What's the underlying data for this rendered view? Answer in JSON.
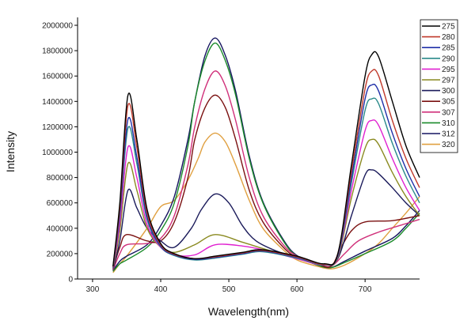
{
  "chart_data": {
    "type": "line",
    "title": "",
    "xlabel": "Wavelength(nm)",
    "ylabel": "Intensity",
    "xlim": [
      278,
      780
    ],
    "ylim": [
      0,
      2000000
    ],
    "xticks": [
      300,
      400,
      500,
      600,
      700
    ],
    "yticks": [
      0,
      200000,
      400000,
      600000,
      800000,
      1000000,
      1200000,
      1400000,
      1600000,
      1800000,
      2000000
    ],
    "legend_position": "right",
    "series": [
      {
        "name": "275",
        "color": "#000000",
        "points": [
          [
            330,
            100000
          ],
          [
            340,
            600000
          ],
          [
            352,
            1450000
          ],
          [
            365,
            1100000
          ],
          [
            380,
            550000
          ],
          [
            400,
            280000
          ],
          [
            420,
            200000
          ],
          [
            450,
            160000
          ],
          [
            480,
            180000
          ],
          [
            520,
            210000
          ],
          [
            550,
            230000
          ],
          [
            600,
            180000
          ],
          [
            640,
            120000
          ],
          [
            660,
            200000
          ],
          [
            680,
            900000
          ],
          [
            700,
            1600000
          ],
          [
            710,
            1770000
          ],
          [
            720,
            1750000
          ],
          [
            740,
            1400000
          ],
          [
            760,
            1050000
          ],
          [
            780,
            800000
          ]
        ]
      },
      {
        "name": "280",
        "color": "#c0392b",
        "points": [
          [
            330,
            95000
          ],
          [
            340,
            560000
          ],
          [
            352,
            1370000
          ],
          [
            365,
            1040000
          ],
          [
            380,
            520000
          ],
          [
            400,
            270000
          ],
          [
            420,
            195000
          ],
          [
            450,
            160000
          ],
          [
            480,
            175000
          ],
          [
            520,
            205000
          ],
          [
            550,
            225000
          ],
          [
            600,
            175000
          ],
          [
            640,
            115000
          ],
          [
            660,
            200000
          ],
          [
            680,
            850000
          ],
          [
            700,
            1500000
          ],
          [
            710,
            1640000
          ],
          [
            720,
            1600000
          ],
          [
            740,
            1250000
          ],
          [
            760,
            950000
          ],
          [
            780,
            720000
          ]
        ]
      },
      {
        "name": "285",
        "color": "#1f2fa8",
        "points": [
          [
            330,
            90000
          ],
          [
            340,
            520000
          ],
          [
            352,
            1260000
          ],
          [
            365,
            960000
          ],
          [
            380,
            490000
          ],
          [
            400,
            260000
          ],
          [
            420,
            190000
          ],
          [
            450,
            155000
          ],
          [
            480,
            170000
          ],
          [
            520,
            200000
          ],
          [
            550,
            220000
          ],
          [
            600,
            170000
          ],
          [
            640,
            115000
          ],
          [
            660,
            190000
          ],
          [
            680,
            800000
          ],
          [
            700,
            1420000
          ],
          [
            710,
            1530000
          ],
          [
            720,
            1480000
          ],
          [
            740,
            1150000
          ],
          [
            760,
            870000
          ],
          [
            780,
            650000
          ]
        ]
      },
      {
        "name": "290",
        "color": "#2a8a8a",
        "points": [
          [
            330,
            88000
          ],
          [
            340,
            500000
          ],
          [
            352,
            1190000
          ],
          [
            365,
            910000
          ],
          [
            380,
            470000
          ],
          [
            400,
            255000
          ],
          [
            420,
            185000
          ],
          [
            450,
            150000
          ],
          [
            480,
            165000
          ],
          [
            520,
            195000
          ],
          [
            550,
            215000
          ],
          [
            600,
            165000
          ],
          [
            640,
            112000
          ],
          [
            660,
            185000
          ],
          [
            680,
            760000
          ],
          [
            700,
            1330000
          ],
          [
            710,
            1420000
          ],
          [
            720,
            1380000
          ],
          [
            740,
            1070000
          ],
          [
            760,
            810000
          ],
          [
            780,
            600000
          ]
        ]
      },
      {
        "name": "295",
        "color": "#e020d0",
        "points": [
          [
            330,
            85000
          ],
          [
            340,
            440000
          ],
          [
            352,
            1040000
          ],
          [
            365,
            800000
          ],
          [
            380,
            430000
          ],
          [
            400,
            250000
          ],
          [
            420,
            190000
          ],
          [
            450,
            190000
          ],
          [
            480,
            270000
          ],
          [
            520,
            260000
          ],
          [
            550,
            230000
          ],
          [
            600,
            160000
          ],
          [
            640,
            110000
          ],
          [
            660,
            180000
          ],
          [
            680,
            700000
          ],
          [
            700,
            1170000
          ],
          [
            710,
            1250000
          ],
          [
            720,
            1210000
          ],
          [
            740,
            950000
          ],
          [
            760,
            720000
          ],
          [
            780,
            540000
          ]
        ]
      },
      {
        "name": "297",
        "color": "#8a8a20",
        "points": [
          [
            330,
            80000
          ],
          [
            340,
            380000
          ],
          [
            352,
            910000
          ],
          [
            365,
            700000
          ],
          [
            380,
            400000
          ],
          [
            400,
            250000
          ],
          [
            420,
            210000
          ],
          [
            450,
            270000
          ],
          [
            480,
            350000
          ],
          [
            520,
            290000
          ],
          [
            550,
            240000
          ],
          [
            600,
            160000
          ],
          [
            640,
            110000
          ],
          [
            660,
            170000
          ],
          [
            680,
            640000
          ],
          [
            700,
            1030000
          ],
          [
            710,
            1100000
          ],
          [
            720,
            1060000
          ],
          [
            740,
            840000
          ],
          [
            760,
            650000
          ],
          [
            780,
            500000
          ]
        ]
      },
      {
        "name": "300",
        "color": "#1a1a5a",
        "points": [
          [
            330,
            75000
          ],
          [
            340,
            300000
          ],
          [
            352,
            700000
          ],
          [
            365,
            560000
          ],
          [
            380,
            400000
          ],
          [
            400,
            300000
          ],
          [
            420,
            250000
          ],
          [
            445,
            400000
          ],
          [
            460,
            550000
          ],
          [
            480,
            670000
          ],
          [
            500,
            600000
          ],
          [
            520,
            420000
          ],
          [
            540,
            300000
          ],
          [
            570,
            220000
          ],
          [
            600,
            170000
          ],
          [
            640,
            110000
          ],
          [
            660,
            160000
          ],
          [
            680,
            500000
          ],
          [
            700,
            820000
          ],
          [
            710,
            860000
          ],
          [
            720,
            830000
          ],
          [
            740,
            720000
          ],
          [
            760,
            600000
          ],
          [
            780,
            500000
          ]
        ]
      },
      {
        "name": "305",
        "color": "#7a1010",
        "points": [
          [
            330,
            80000
          ],
          [
            340,
            250000
          ],
          [
            350,
            350000
          ],
          [
            380,
            300000
          ],
          [
            400,
            300000
          ],
          [
            420,
            450000
          ],
          [
            440,
            800000
          ],
          [
            450,
            1100000
          ],
          [
            465,
            1350000
          ],
          [
            480,
            1450000
          ],
          [
            495,
            1350000
          ],
          [
            510,
            1100000
          ],
          [
            530,
            700000
          ],
          [
            550,
            450000
          ],
          [
            580,
            250000
          ],
          [
            600,
            170000
          ],
          [
            630,
            120000
          ],
          [
            650,
            100000
          ],
          [
            665,
            250000
          ],
          [
            680,
            380000
          ],
          [
            700,
            450000
          ],
          [
            740,
            460000
          ],
          [
            780,
            500000
          ]
        ]
      },
      {
        "name": "307",
        "color": "#d0307a",
        "points": [
          [
            330,
            70000
          ],
          [
            340,
            200000
          ],
          [
            350,
            270000
          ],
          [
            380,
            280000
          ],
          [
            400,
            320000
          ],
          [
            420,
            500000
          ],
          [
            440,
            900000
          ],
          [
            450,
            1200000
          ],
          [
            465,
            1500000
          ],
          [
            480,
            1640000
          ],
          [
            495,
            1520000
          ],
          [
            510,
            1250000
          ],
          [
            530,
            800000
          ],
          [
            550,
            500000
          ],
          [
            580,
            270000
          ],
          [
            600,
            180000
          ],
          [
            630,
            120000
          ],
          [
            650,
            100000
          ],
          [
            670,
            200000
          ],
          [
            690,
            300000
          ],
          [
            720,
            370000
          ],
          [
            750,
            420000
          ],
          [
            780,
            470000
          ]
        ]
      },
      {
        "name": "310",
        "color": "#1a8a2a",
        "points": [
          [
            330,
            60000
          ],
          [
            340,
            120000
          ],
          [
            350,
            150000
          ],
          [
            380,
            250000
          ],
          [
            400,
            380000
          ],
          [
            420,
            600000
          ],
          [
            440,
            1050000
          ],
          [
            450,
            1400000
          ],
          [
            465,
            1720000
          ],
          [
            480,
            1860000
          ],
          [
            495,
            1720000
          ],
          [
            510,
            1450000
          ],
          [
            530,
            950000
          ],
          [
            550,
            600000
          ],
          [
            580,
            300000
          ],
          [
            600,
            180000
          ],
          [
            630,
            110000
          ],
          [
            650,
            90000
          ],
          [
            670,
            130000
          ],
          [
            700,
            200000
          ],
          [
            740,
            300000
          ],
          [
            760,
            400000
          ],
          [
            780,
            520000
          ]
        ]
      },
      {
        "name": "312",
        "color": "#151560",
        "points": [
          [
            330,
            65000
          ],
          [
            340,
            140000
          ],
          [
            350,
            180000
          ],
          [
            380,
            270000
          ],
          [
            400,
            420000
          ],
          [
            420,
            650000
          ],
          [
            440,
            1100000
          ],
          [
            450,
            1400000
          ],
          [
            465,
            1760000
          ],
          [
            480,
            1900000
          ],
          [
            495,
            1760000
          ],
          [
            510,
            1480000
          ],
          [
            530,
            970000
          ],
          [
            550,
            610000
          ],
          [
            580,
            310000
          ],
          [
            600,
            185000
          ],
          [
            630,
            110000
          ],
          [
            650,
            90000
          ],
          [
            670,
            140000
          ],
          [
            700,
            220000
          ],
          [
            740,
            320000
          ],
          [
            760,
            420000
          ],
          [
            780,
            540000
          ]
        ]
      },
      {
        "name": "320",
        "color": "#e0a040",
        "points": [
          [
            330,
            50000
          ],
          [
            340,
            120000
          ],
          [
            350,
            180000
          ],
          [
            380,
            400000
          ],
          [
            400,
            570000
          ],
          [
            420,
            620000
          ],
          [
            440,
            780000
          ],
          [
            455,
            950000
          ],
          [
            465,
            1080000
          ],
          [
            480,
            1150000
          ],
          [
            495,
            1080000
          ],
          [
            510,
            900000
          ],
          [
            530,
            620000
          ],
          [
            550,
            400000
          ],
          [
            580,
            230000
          ],
          [
            600,
            150000
          ],
          [
            630,
            100000
          ],
          [
            650,
            80000
          ],
          [
            670,
            110000
          ],
          [
            700,
            200000
          ],
          [
            720,
            280000
          ],
          [
            740,
            400000
          ],
          [
            760,
            520000
          ],
          [
            780,
            650000
          ]
        ]
      }
    ]
  }
}
